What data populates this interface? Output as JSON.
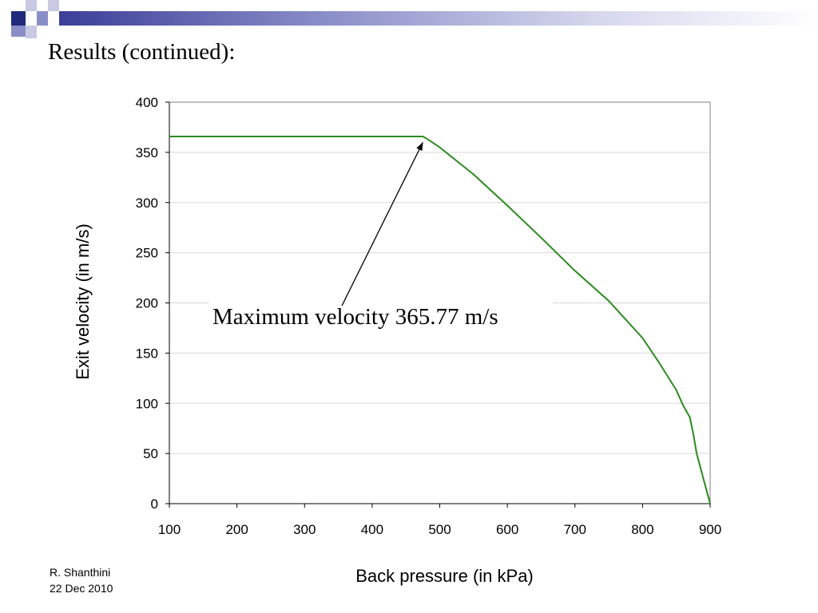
{
  "slide": {
    "title": "Results (continued):",
    "author": "R. Shanthini",
    "date": "22 Dec 2010"
  },
  "colors": {
    "header_dark": "#1f2a7a",
    "header_mid": "#8a8ec8",
    "header_light": "#d4d6ec",
    "series_line": "#2a8a1e",
    "grid": "#d8d8d8"
  },
  "chart_data": {
    "type": "line",
    "title": "",
    "xlabel": "Back pressure (in kPa)",
    "ylabel": "Exit velocity (in m/s)",
    "xlim": [
      100,
      900
    ],
    "ylim": [
      0,
      400
    ],
    "xticks": [
      "100",
      "200",
      "300",
      "400",
      "500",
      "600",
      "700",
      "800",
      "900"
    ],
    "yticks": [
      "0",
      "50",
      "100",
      "150",
      "200",
      "250",
      "300",
      "350",
      "400"
    ],
    "grid": "horizontal",
    "legend": "none",
    "series": [
      {
        "x": [
          100,
          200,
          300,
          400,
          475,
          480,
          500,
          550,
          600,
          650,
          700,
          750,
          800,
          825,
          850,
          860,
          870,
          875,
          880,
          890,
          900
        ],
        "y": [
          365.77,
          365.77,
          365.77,
          365.77,
          365.77,
          364,
          355,
          328,
          297,
          265,
          232,
          202,
          165,
          140,
          113,
          98,
          86,
          70,
          50,
          25,
          0
        ]
      }
    ],
    "annotations": [
      {
        "text": "Maximum velocity 365.77 m/s",
        "points_to": {
          "x": 475,
          "y": 360
        }
      }
    ]
  }
}
